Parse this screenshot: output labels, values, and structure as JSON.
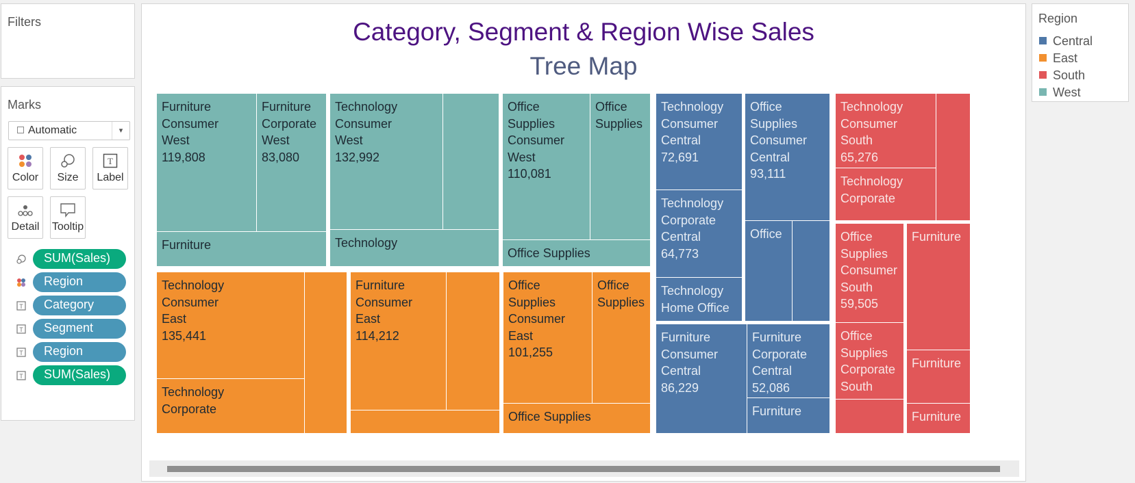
{
  "filters": {
    "title": "Filters"
  },
  "marks": {
    "title": "Marks",
    "mark_type": "Automatic",
    "buttons": {
      "color": "Color",
      "size": "Size",
      "label": "Label",
      "detail": "Detail",
      "tooltip": "Tooltip"
    },
    "pills": [
      "SUM(Sales)",
      "Region",
      "Category",
      "Segment",
      "Region",
      "SUM(Sales)"
    ]
  },
  "viz": {
    "title": "Category, Segment & Region Wise Sales",
    "subtitle": "Tree Map"
  },
  "legend": {
    "title": "Region",
    "items": [
      {
        "label": "Central",
        "color": "#4f78a8"
      },
      {
        "label": "East",
        "color": "#f2902f"
      },
      {
        "label": "South",
        "color": "#e15759"
      },
      {
        "label": "West",
        "color": "#79b6b1"
      }
    ]
  },
  "chart_data": {
    "type": "treemap",
    "title": "Category, Segment & Region Wise Sales",
    "subtitle": "Tree Map",
    "color_by": "Region",
    "cells": [
      {
        "region": "West",
        "lines": [
          "Furniture",
          "Consumer",
          "West",
          "119,808"
        ],
        "value": 119808
      },
      {
        "region": "West",
        "lines": [
          "Furniture",
          "Corporate",
          "West",
          "83,080"
        ],
        "value": 83080
      },
      {
        "region": "West",
        "lines": [
          "Furniture"
        ]
      },
      {
        "region": "West",
        "lines": [
          "Technology",
          "Consumer",
          "West",
          "132,992"
        ],
        "value": 132992
      },
      {
        "region": "West",
        "lines": []
      },
      {
        "region": "West",
        "lines": [
          "Technology"
        ]
      },
      {
        "region": "West",
        "lines": [
          "Office",
          "Supplies",
          "Consumer",
          "West",
          "110,081"
        ],
        "value": 110081
      },
      {
        "region": "West",
        "lines": [
          "Office",
          "Supplies"
        ]
      },
      {
        "region": "West",
        "lines": [
          "Office Supplies"
        ]
      },
      {
        "region": "East",
        "lines": [
          "Technology",
          "Consumer",
          "East",
          "135,441"
        ],
        "value": 135441
      },
      {
        "region": "East",
        "lines": []
      },
      {
        "region": "East",
        "lines": [
          "Technology",
          "Corporate"
        ]
      },
      {
        "region": "East",
        "lines": [
          "Furniture",
          "Consumer",
          "East",
          "114,212"
        ],
        "value": 114212
      },
      {
        "region": "East",
        "lines": []
      },
      {
        "region": "East",
        "lines": []
      },
      {
        "region": "East",
        "lines": [
          "Office",
          "Supplies",
          "Consumer",
          "East",
          "101,255"
        ],
        "value": 101255
      },
      {
        "region": "East",
        "lines": [
          "Office",
          "Supplies"
        ]
      },
      {
        "region": "East",
        "lines": [
          "Office Supplies"
        ]
      },
      {
        "region": "Central",
        "lines": [
          "Technology",
          "Consumer",
          "Central",
          "72,691"
        ],
        "value": 72691
      },
      {
        "region": "Central",
        "lines": [
          "Technology",
          "Corporate",
          "Central",
          "64,773"
        ],
        "value": 64773
      },
      {
        "region": "Central",
        "lines": [
          "Technology",
          "Home Office"
        ]
      },
      {
        "region": "Central",
        "lines": [
          "Office",
          "Supplies",
          "Consumer",
          "Central",
          "93,111"
        ],
        "value": 93111
      },
      {
        "region": "Central",
        "lines": [
          "Office"
        ]
      },
      {
        "region": "Central",
        "lines": []
      },
      {
        "region": "Central",
        "lines": [
          "Furniture",
          "Consumer",
          "Central",
          "86,229"
        ],
        "value": 86229
      },
      {
        "region": "Central",
        "lines": [
          "Furniture",
          "Corporate",
          "Central",
          "52,086"
        ],
        "value": 52086
      },
      {
        "region": "Central",
        "lines": [
          "Furniture"
        ]
      },
      {
        "region": "South",
        "lines": [
          "Technology",
          "Consumer",
          "South",
          "65,276"
        ],
        "value": 65276
      },
      {
        "region": "South",
        "lines": [
          "Technology",
          "Corporate"
        ]
      },
      {
        "region": "South",
        "lines": []
      },
      {
        "region": "South",
        "lines": [
          "Office",
          "Supplies",
          "Consumer",
          "South",
          "59,505"
        ],
        "value": 59505
      },
      {
        "region": "South",
        "lines": [
          "Office",
          "Supplies",
          "Corporate",
          "South"
        ]
      },
      {
        "region": "South",
        "lines": []
      },
      {
        "region": "South",
        "lines": [
          "Furniture"
        ]
      },
      {
        "region": "South",
        "lines": [
          "Furniture"
        ]
      },
      {
        "region": "South",
        "lines": [
          "Furniture"
        ]
      }
    ]
  }
}
